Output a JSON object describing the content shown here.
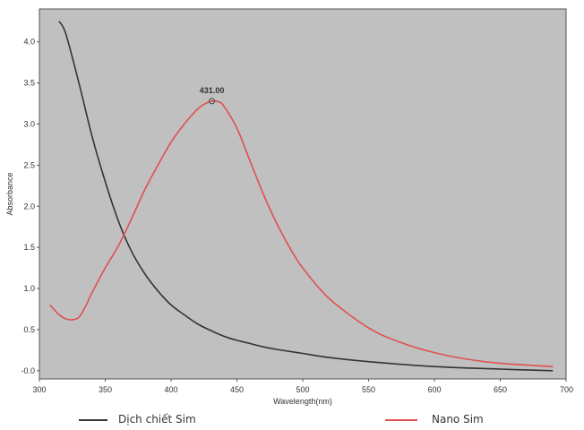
{
  "chart_data": {
    "type": "line",
    "xlabel": "Wavelength(nm)",
    "ylabel": "Absorbance",
    "xlim": [
      300,
      700
    ],
    "ylim": [
      -0.1,
      4.4
    ],
    "x_ticks": [
      "300",
      "350",
      "400",
      "450",
      "500",
      "550",
      "600",
      "650",
      "700"
    ],
    "y_ticks": [
      "-0.0",
      "0.5",
      "1.0",
      "1.5",
      "2.0",
      "2.5",
      "3.0",
      "3.5",
      "4.0"
    ],
    "grid": false,
    "plot_background": "#c0c0c0",
    "annotation": {
      "label": "431.00",
      "x": 431,
      "y": 3.28
    },
    "series": [
      {
        "name": "Dịch chiết Sim",
        "color": "#333333",
        "x": [
          315,
          320,
          330,
          340,
          350,
          360,
          370,
          380,
          390,
          400,
          410,
          420,
          430,
          440,
          450,
          460,
          470,
          480,
          500,
          520,
          550,
          600,
          650,
          690
        ],
        "y": [
          4.25,
          4.1,
          3.5,
          2.85,
          2.3,
          1.82,
          1.45,
          1.18,
          0.97,
          0.8,
          0.68,
          0.57,
          0.49,
          0.42,
          0.37,
          0.33,
          0.29,
          0.26,
          0.21,
          0.16,
          0.11,
          0.05,
          0.02,
          0.0
        ]
      },
      {
        "name": "Nano Sim",
        "color": "#e05050",
        "x": [
          308,
          315,
          320,
          325,
          330,
          335,
          340,
          350,
          360,
          370,
          380,
          390,
          400,
          410,
          420,
          425,
          431,
          436,
          440,
          450,
          460,
          470,
          480,
          490,
          500,
          520,
          550,
          575,
          600,
          625,
          650,
          690
        ],
        "y": [
          0.8,
          0.68,
          0.63,
          0.62,
          0.65,
          0.78,
          0.95,
          1.25,
          1.52,
          1.85,
          2.2,
          2.5,
          2.78,
          3.0,
          3.18,
          3.24,
          3.28,
          3.27,
          3.22,
          2.95,
          2.55,
          2.15,
          1.8,
          1.5,
          1.25,
          0.88,
          0.52,
          0.34,
          0.22,
          0.14,
          0.09,
          0.05
        ]
      }
    ]
  }
}
